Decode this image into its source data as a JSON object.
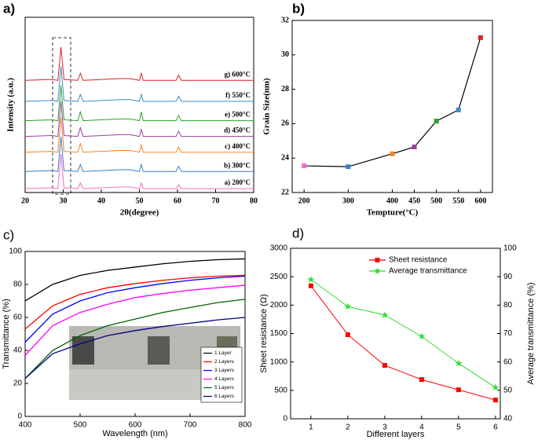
{
  "chart_data": [
    {
      "type": "line",
      "panel_label": "a)",
      "x_label": "2θ(degree)",
      "y_label": "Intensity (a.u.)",
      "xlim": [
        20,
        80
      ],
      "xticks": [
        20,
        30,
        40,
        50,
        60,
        70,
        80
      ],
      "ylim": [
        0,
        100
      ],
      "series_labels": "inline",
      "x": [
        20,
        27,
        28.6,
        29.4,
        30.2,
        33.8,
        34.5,
        35.2,
        45,
        47.5,
        50,
        50.5,
        51,
        59.6,
        60.3,
        61,
        80
      ],
      "series": [
        {
          "name": "a) 200°C",
          "color": "#f06ec8",
          "values": [
            2.2,
            2.7,
            2.2,
            22,
            2.7,
            2.2,
            5.5,
            2.2,
            3.2,
            3.2,
            2.2,
            5.5,
            2.2,
            2.2,
            4.5,
            2.2,
            2.2
          ]
        },
        {
          "name": "b) 300°C",
          "color": "#3a7fc4",
          "values": [
            12,
            12.5,
            12,
            32,
            12.5,
            12,
            16,
            12,
            13,
            13,
            12,
            16,
            12,
            12,
            15,
            12,
            12
          ]
        },
        {
          "name": "c) 400°C",
          "color": "#f58220",
          "values": [
            23,
            23.5,
            23,
            43,
            23.5,
            23,
            28,
            23,
            24,
            24,
            23,
            27,
            23,
            23,
            26,
            23,
            23
          ]
        },
        {
          "name": "d) 450°C",
          "color": "#9b3fa0",
          "values": [
            32,
            32.5,
            32,
            52,
            32.5,
            32,
            37,
            32,
            33,
            33,
            32,
            36,
            32,
            32,
            35,
            32,
            32
          ]
        },
        {
          "name": "e) 500°C",
          "color": "#2ca02c",
          "values": [
            41,
            41.5,
            41,
            61,
            41.5,
            41,
            46,
            41,
            42,
            42,
            41,
            46,
            41,
            41,
            44,
            41,
            41
          ]
        },
        {
          "name": "f) 550°C",
          "color": "#3c8dc0",
          "values": [
            52,
            52.5,
            52,
            72,
            52.5,
            52,
            56,
            52,
            53,
            53,
            52,
            56,
            52,
            52,
            55,
            52,
            52
          ]
        },
        {
          "name": "g) 600°C",
          "color": "#e02020",
          "values": [
            64,
            64.5,
            64,
            83,
            64.5,
            64,
            68,
            64,
            65,
            65,
            64,
            68,
            64,
            64,
            67,
            64,
            64
          ]
        }
      ]
    },
    {
      "type": "line",
      "panel_label": "b)",
      "x_label": "Tempture(°C)",
      "y_label": "Grain Size(nm)",
      "xlim": [
        173,
        627
      ],
      "xticks": [
        200,
        300,
        400,
        450,
        500,
        550,
        600
      ],
      "ylim": [
        22,
        32
      ],
      "yticks": [
        22,
        24,
        26,
        28,
        30,
        32
      ],
      "x": [
        200,
        300,
        400,
        450,
        500,
        550,
        600
      ],
      "line_color": "#000000",
      "point_colors": [
        "#f06ec8",
        "#3a7fc4",
        "#f58220",
        "#9b3fa0",
        "#2ca02c",
        "#3c8dc0",
        "#e02020"
      ],
      "series": [
        {
          "values": [
            23.55,
            23.5,
            24.25,
            24.65,
            26.15,
            26.8,
            31.0
          ]
        }
      ]
    },
    {
      "type": "line",
      "panel_label": "c)",
      "x_label": "Wavelength (nm)",
      "y_label": "Transmittance (%)",
      "xlim": [
        400,
        800
      ],
      "xticks": [
        400,
        500,
        600,
        700,
        800
      ],
      "ylim": [
        0,
        100
      ],
      "yticks": [
        0,
        20,
        40,
        60,
        80,
        100
      ],
      "legend": "lower right",
      "x": [
        400,
        450,
        500,
        550,
        600,
        650,
        700,
        750,
        800
      ],
      "series": [
        {
          "name": "1 Layer",
          "color": "#000000",
          "values": [
            70,
            80,
            85.5,
            88.5,
            90.5,
            92.5,
            94,
            95,
            95.5
          ]
        },
        {
          "name": "2 Layers",
          "color": "#ff0000",
          "values": [
            53,
            67,
            74,
            78,
            80.5,
            82.5,
            84,
            85,
            85.5
          ]
        },
        {
          "name": "3 Layers",
          "color": "#0000ff",
          "values": [
            45,
            62,
            70,
            75,
            78,
            80.5,
            82.5,
            84,
            85
          ]
        },
        {
          "name": "4 Layers",
          "color": "#ff00ff",
          "values": [
            37,
            55,
            63,
            68,
            72,
            74.5,
            76.5,
            78,
            79.5
          ]
        },
        {
          "name": "5 Layers",
          "color": "#006400",
          "values": [
            23,
            40,
            49,
            55,
            59,
            63,
            66,
            69,
            71
          ]
        },
        {
          "name": "6 Layers",
          "color": "#000080",
          "values": [
            23,
            38,
            44,
            49,
            52,
            54.5,
            56.5,
            58.5,
            60
          ]
        }
      ]
    },
    {
      "type": "line",
      "panel_label": "d)",
      "x_label": "Different layers",
      "y_label": "Sheet resistance (Ω)",
      "y2_label": "Average transmittance (%)",
      "xlim": [
        0.45,
        6.13
      ],
      "xticks": [
        1,
        2,
        3,
        4,
        5,
        6
      ],
      "ylim": [
        0,
        3000
      ],
      "yticks": [
        0,
        500,
        1000,
        1500,
        2000,
        2500,
        3000
      ],
      "y2lim": [
        40,
        100
      ],
      "y2ticks": [
        40,
        50,
        60,
        70,
        80,
        90,
        100
      ],
      "legend": "upper right",
      "x": [
        1,
        2,
        3,
        4,
        5,
        6
      ],
      "series": [
        {
          "name": "Sheet resistance",
          "color": "#ff0000",
          "marker": "square",
          "values": [
            2340,
            1480,
            940,
            690,
            510,
            330
          ]
        },
        {
          "name": "Average transmittance",
          "color": "#33dd33",
          "marker": "star",
          "axis": "y2",
          "values": [
            89,
            79.5,
            76.5,
            69,
            59.5,
            51
          ]
        }
      ]
    }
  ]
}
